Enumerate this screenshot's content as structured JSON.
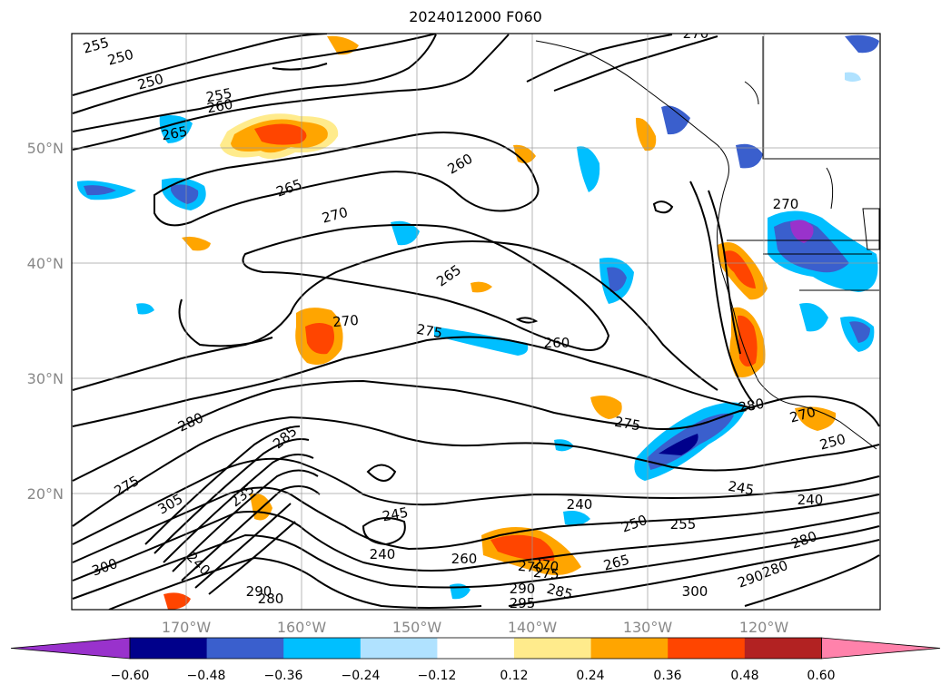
{
  "title": "2024012000 F060",
  "lat_labels": [
    "50°N",
    "40°N",
    "30°N",
    "20°N"
  ],
  "lon_labels": [
    "170°W",
    "160°W",
    "150°W",
    "140°W",
    "130°W",
    "120°W"
  ],
  "colorbar": {
    "ticks": [
      "−0.60",
      "−0.48",
      "−0.36",
      "−0.24",
      "−0.12",
      "0.12",
      "0.24",
      "0.36",
      "0.48",
      "0.60"
    ],
    "colors": [
      "#9932cc",
      "#00008b",
      "#3a5fcd",
      "#00bfff",
      "#b0e2ff",
      "#ffffff",
      "#ffeb8c",
      "#ffa500",
      "#ff4500",
      "#b22222",
      "#ff82ab"
    ]
  },
  "contour_labels": [
    "255",
    "250",
    "250",
    "255",
    "260",
    "265",
    "260",
    "265",
    "270",
    "265",
    "270",
    "275",
    "260",
    "270",
    "280",
    "275",
    "280",
    "285",
    "305",
    "300",
    "275",
    "270",
    "245",
    "240",
    "240",
    "260",
    "270",
    "275",
    "290",
    "295",
    "290",
    "285",
    "265",
    "250",
    "255",
    "245",
    "240",
    "280",
    "300",
    "290",
    "280",
    "250",
    "270",
    "240",
    "235",
    "270",
    "280"
  ]
}
